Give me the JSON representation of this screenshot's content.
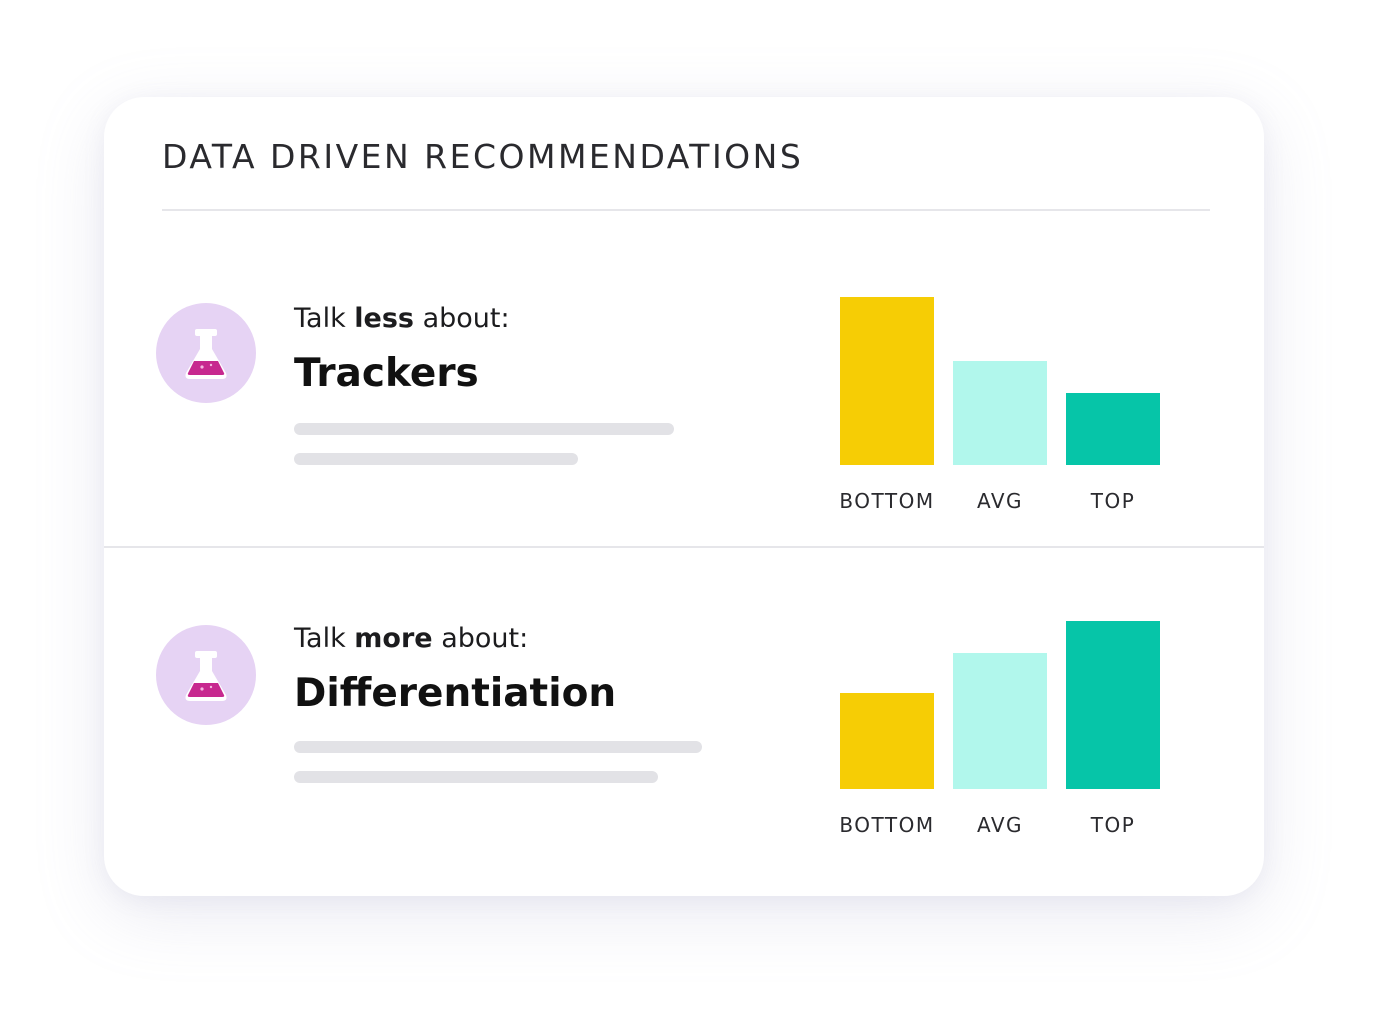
{
  "card": {
    "title": "DATA DRIVEN RECOMMENDATIONS"
  },
  "recommendations": [
    {
      "icon": "flask-icon",
      "prompt_prefix": "Talk ",
      "prompt_emphasis": "less",
      "prompt_suffix": " about:",
      "topic": "Trackers",
      "chart_data": {
        "type": "bar",
        "categories": [
          "BOTTOM",
          "AVG",
          "TOP"
        ],
        "values": [
          100,
          62,
          43
        ],
        "colors": [
          "#f6cd05",
          "#b1f7ec",
          "#06c5a8"
        ]
      }
    },
    {
      "icon": "flask-icon",
      "prompt_prefix": "Talk ",
      "prompt_emphasis": "more",
      "prompt_suffix": " about:",
      "topic": "Differentiation",
      "chart_data": {
        "type": "bar",
        "categories": [
          "BOTTOM",
          "AVG",
          "TOP"
        ],
        "values": [
          57,
          81,
          100
        ],
        "colors": [
          "#f6cd05",
          "#b1f7ec",
          "#06c5a8"
        ]
      }
    }
  ],
  "colors": {
    "avatar_bg": "#e6d3f4",
    "flask_liquid": "#c7288f",
    "skeleton": "#e2e2e6"
  }
}
